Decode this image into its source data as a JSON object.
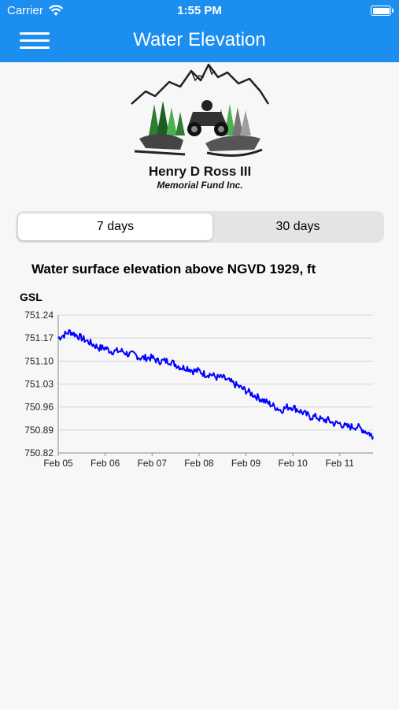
{
  "status_bar": {
    "carrier": "Carrier",
    "time": "1:55 PM"
  },
  "nav": {
    "title": "Water Elevation",
    "menu_icon": "hamburger-icon"
  },
  "logo": {
    "line1": "Henry D Ross III",
    "line2": "Memorial Fund Inc."
  },
  "segmented": {
    "options": [
      "7 days",
      "30 days"
    ],
    "selected": "7 days"
  },
  "chart": {
    "title": "Water surface elevation above NGVD 1929, ft",
    "unit_label": "GSL"
  },
  "colors": {
    "header": "#1c8ef0",
    "series": "#0000ff",
    "grid": "#d6d6d6"
  },
  "chart_data": {
    "type": "line",
    "title": "Water surface elevation above NGVD 1929, ft",
    "ylabel": "GSL",
    "xlabel": "",
    "x_ticks": [
      "Feb 05",
      "Feb 06",
      "Feb 07",
      "Feb 08",
      "Feb 09",
      "Feb 10",
      "Feb 11"
    ],
    "y_ticks": [
      "751.24",
      "751.17",
      "751.10",
      "751.03",
      "750.96",
      "750.89",
      "750.82"
    ],
    "ylim": [
      750.82,
      751.24
    ],
    "xlim": [
      "Feb 05",
      "Feb 11 17:00"
    ],
    "grid": true,
    "series": [
      {
        "x_hours": [
          0,
          3,
          6,
          9,
          12,
          15,
          18,
          21,
          24,
          27,
          30,
          33,
          36,
          39,
          42,
          45,
          48,
          51,
          54,
          57,
          60,
          63,
          66,
          69,
          72,
          75,
          78,
          81,
          84,
          87,
          90,
          93,
          96,
          99,
          102,
          105,
          108,
          111,
          114,
          117,
          120,
          123,
          126,
          129,
          132,
          135,
          138,
          141,
          144,
          147,
          150,
          153,
          156,
          159,
          161
        ],
        "values": [
          751.17,
          751.18,
          751.19,
          751.18,
          751.17,
          751.16,
          751.15,
          751.14,
          751.14,
          751.13,
          751.13,
          751.13,
          751.12,
          751.12,
          751.11,
          751.11,
          751.11,
          751.1,
          751.1,
          751.1,
          751.09,
          751.08,
          751.08,
          751.07,
          751.07,
          751.06,
          751.06,
          751.05,
          751.05,
          751.04,
          751.03,
          751.02,
          751.01,
          751.0,
          750.99,
          750.98,
          750.97,
          750.96,
          750.95,
          750.96,
          750.96,
          750.95,
          750.94,
          750.93,
          750.93,
          750.92,
          750.92,
          750.91,
          750.91,
          750.9,
          750.9,
          750.9,
          750.89,
          750.88,
          750.87
        ]
      }
    ]
  }
}
